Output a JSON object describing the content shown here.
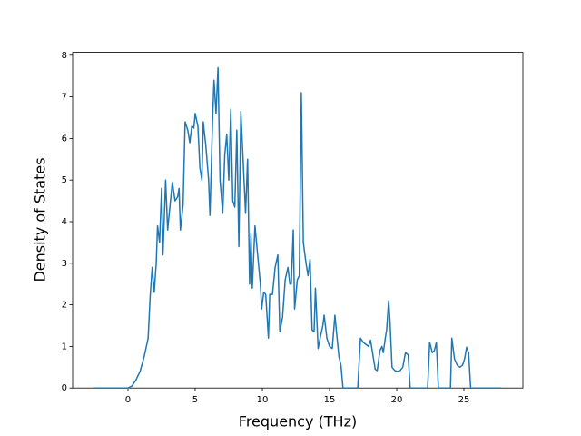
{
  "chart_data": {
    "type": "line",
    "xlabel": "Frequency (THz)",
    "ylabel": "Density of States",
    "x": [
      -2.6,
      0,
      0.3,
      0.6,
      0.9,
      1.2,
      1.5,
      1.65,
      1.8,
      1.95,
      2.1,
      2.2,
      2.35,
      2.5,
      2.6,
      2.8,
      2.95,
      3.3,
      3.5,
      3.7,
      3.8,
      3.9,
      4.1,
      4.25,
      4.45,
      4.6,
      4.75,
      4.9,
      5.0,
      5.2,
      5.35,
      5.5,
      5.6,
      5.8,
      6.0,
      6.1,
      6.3,
      6.4,
      6.55,
      6.7,
      6.85,
      7.05,
      7.2,
      7.35,
      7.5,
      7.65,
      7.8,
      7.95,
      8.1,
      8.25,
      8.4,
      8.55,
      8.75,
      8.9,
      9.05,
      9.15,
      9.25,
      9.45,
      9.65,
      9.85,
      9.95,
      10.1,
      10.25,
      10.45,
      10.55,
      10.75,
      10.95,
      11.15,
      11.3,
      11.5,
      11.7,
      11.9,
      12.05,
      12.15,
      12.3,
      12.4,
      12.6,
      12.75,
      12.9,
      13.05,
      13.25,
      13.4,
      13.55,
      13.7,
      13.85,
      13.95,
      14.15,
      14.3,
      14.5,
      14.6,
      14.8,
      15.0,
      15.2,
      15.4,
      15.5,
      15.7,
      15.85,
      16.0,
      17.1,
      17.3,
      17.5,
      17.7,
      17.9,
      18.05,
      18.25,
      18.4,
      18.55,
      18.75,
      18.9,
      19.0,
      19.15,
      19.25,
      19.4,
      19.5,
      19.65,
      19.85,
      20.05,
      20.25,
      20.45,
      20.65,
      20.85,
      21.0,
      22.3,
      22.45,
      22.65,
      22.8,
      22.95,
      23.1,
      24.0,
      24.1,
      24.3,
      24.5,
      24.7,
      24.9,
      25.05,
      25.2,
      25.35,
      25.5,
      27.8
    ],
    "series": [
      {
        "color": "#1f77b4",
        "values": [
          0,
          0,
          0.05,
          0.2,
          0.4,
          0.75,
          1.2,
          2.2,
          2.9,
          2.3,
          3.0,
          3.9,
          3.5,
          4.8,
          3.2,
          5.0,
          3.8,
          4.95,
          4.5,
          4.6,
          4.8,
          3.8,
          4.4,
          6.4,
          6.2,
          5.9,
          6.3,
          6.25,
          6.6,
          6.3,
          5.3,
          5.0,
          6.4,
          5.8,
          5.0,
          4.15,
          6.5,
          7.4,
          6.6,
          7.7,
          5.0,
          4.2,
          5.6,
          6.1,
          5.0,
          6.7,
          4.5,
          4.35,
          6.2,
          3.4,
          6.65,
          5.6,
          4.2,
          5.5,
          2.5,
          3.7,
          2.4,
          3.9,
          3.2,
          2.5,
          1.9,
          2.3,
          2.25,
          1.2,
          2.25,
          2.25,
          2.9,
          3.2,
          1.35,
          1.7,
          2.6,
          2.9,
          2.5,
          2.5,
          3.8,
          1.9,
          2.6,
          2.7,
          7.1,
          3.5,
          3.0,
          2.7,
          3.1,
          1.4,
          1.35,
          2.4,
          0.95,
          1.2,
          1.5,
          1.75,
          1.2,
          1.0,
          0.95,
          1.75,
          1.4,
          0.75,
          0.55,
          0,
          0,
          1.2,
          1.1,
          1.05,
          1.0,
          1.15,
          0.75,
          0.45,
          0.42,
          0.9,
          1.0,
          0.85,
          1.2,
          1.4,
          2.1,
          1.6,
          0.5,
          0.42,
          0.4,
          0.42,
          0.5,
          0.85,
          0.8,
          0,
          0,
          1.1,
          0.85,
          0.9,
          1.1,
          0,
          0,
          1.2,
          0.7,
          0.55,
          0.5,
          0.55,
          0.7,
          0.98,
          0.85,
          0,
          0
        ]
      }
    ],
    "xlim": [
      -4.12,
      29.39
    ],
    "ylim": [
      0,
      8.07
    ],
    "xticks": [
      0,
      5,
      10,
      15,
      20,
      25
    ],
    "yticks": [
      0,
      1,
      2,
      3,
      4,
      5,
      6,
      7,
      8
    ]
  }
}
